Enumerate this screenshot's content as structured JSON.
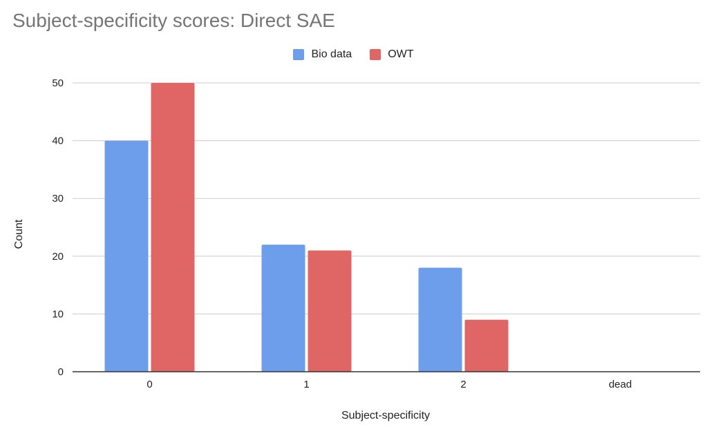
{
  "chart_data": {
    "type": "bar",
    "title": "Subject-specificity scores: Direct SAE",
    "xlabel": "Subject-specificity",
    "ylabel": "Count",
    "categories": [
      "0",
      "1",
      "2",
      "dead"
    ],
    "series": [
      {
        "name": "Bio data",
        "color": "#6d9eeb",
        "values": [
          40,
          22,
          18,
          0
        ]
      },
      {
        "name": "OWT",
        "color": "#e06666",
        "values": [
          50,
          21,
          9,
          0
        ]
      }
    ],
    "ylim": [
      0,
      50
    ],
    "yticks": [
      0,
      10,
      20,
      30,
      40,
      50
    ],
    "grid": true,
    "legend": "top-center"
  }
}
